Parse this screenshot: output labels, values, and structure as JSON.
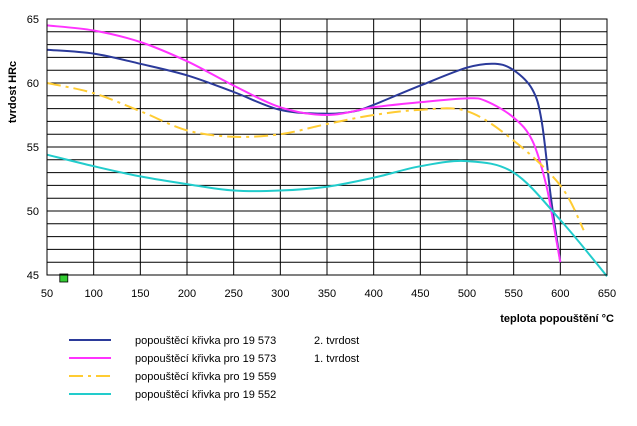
{
  "chart_data": {
    "type": "line",
    "xlabel": "teplota popouštění °C",
    "ylabel": "tvrdost HRc",
    "xlim": [
      50,
      650
    ],
    "ylim": [
      45,
      65
    ],
    "x_ticks": [
      50,
      100,
      150,
      200,
      250,
      300,
      350,
      400,
      450,
      500,
      550,
      600,
      650
    ],
    "y_ticks": [
      45,
      50,
      55,
      60,
      65
    ],
    "grid": true,
    "legend_position": "bottom",
    "marker_color": "#33cc33",
    "series": [
      {
        "name": "popouštěcí křivka pro  19 573    2. tvrdost",
        "color": "#2b3a9a",
        "dash": "solid",
        "x": [
          50,
          100,
          150,
          200,
          250,
          300,
          350,
          380,
          400,
          450,
          500,
          530,
          550,
          570,
          580,
          590,
          600
        ],
        "y": [
          62.6,
          62.3,
          61.5,
          60.6,
          59.3,
          57.9,
          57.6,
          57.8,
          58.3,
          59.8,
          61.2,
          61.5,
          61.0,
          59.5,
          57.0,
          51.0,
          46.0
        ]
      },
      {
        "name": "popouštěcí křivka pro  19 573    1. tvrdost",
        "color": "#ff33ff",
        "dash": "solid",
        "x": [
          50,
          100,
          150,
          200,
          250,
          300,
          350,
          400,
          450,
          500,
          520,
          550,
          570,
          585,
          595,
          600
        ],
        "y": [
          64.5,
          64.1,
          63.2,
          61.7,
          59.8,
          58.1,
          57.5,
          58.1,
          58.5,
          58.8,
          58.6,
          57.3,
          55.5,
          52.0,
          48.0,
          46.0
        ]
      },
      {
        "name": "popouštěcí křivka pro  19 559",
        "color": "#ffcc33",
        "dash": "dashdot",
        "x": [
          50,
          100,
          150,
          200,
          250,
          300,
          350,
          400,
          450,
          500,
          550,
          600,
          625
        ],
        "y": [
          60.0,
          59.2,
          57.8,
          56.3,
          55.8,
          56.0,
          56.8,
          57.5,
          57.9,
          57.8,
          55.5,
          52.0,
          48.5
        ]
      },
      {
        "name": "popouštěcí křivka pro  19 552",
        "color": "#22cccc",
        "dash": "solid",
        "x": [
          50,
          100,
          150,
          200,
          250,
          300,
          350,
          400,
          450,
          500,
          550,
          600,
          650
        ],
        "y": [
          54.4,
          53.5,
          52.7,
          52.1,
          51.6,
          51.6,
          51.9,
          52.6,
          53.5,
          53.9,
          53.0,
          49.3,
          44.9
        ]
      }
    ],
    "legend": [
      {
        "label": "popouštěcí křivka pro  19 573",
        "suffix": "2. tvrdost"
      },
      {
        "label": "popouštěcí křivka pro  19 573",
        "suffix": "1. tvrdost"
      },
      {
        "label": "popouštěcí křivka pro  19 559",
        "suffix": ""
      },
      {
        "label": "popouštěcí křivka pro  19 552",
        "suffix": ""
      }
    ]
  }
}
